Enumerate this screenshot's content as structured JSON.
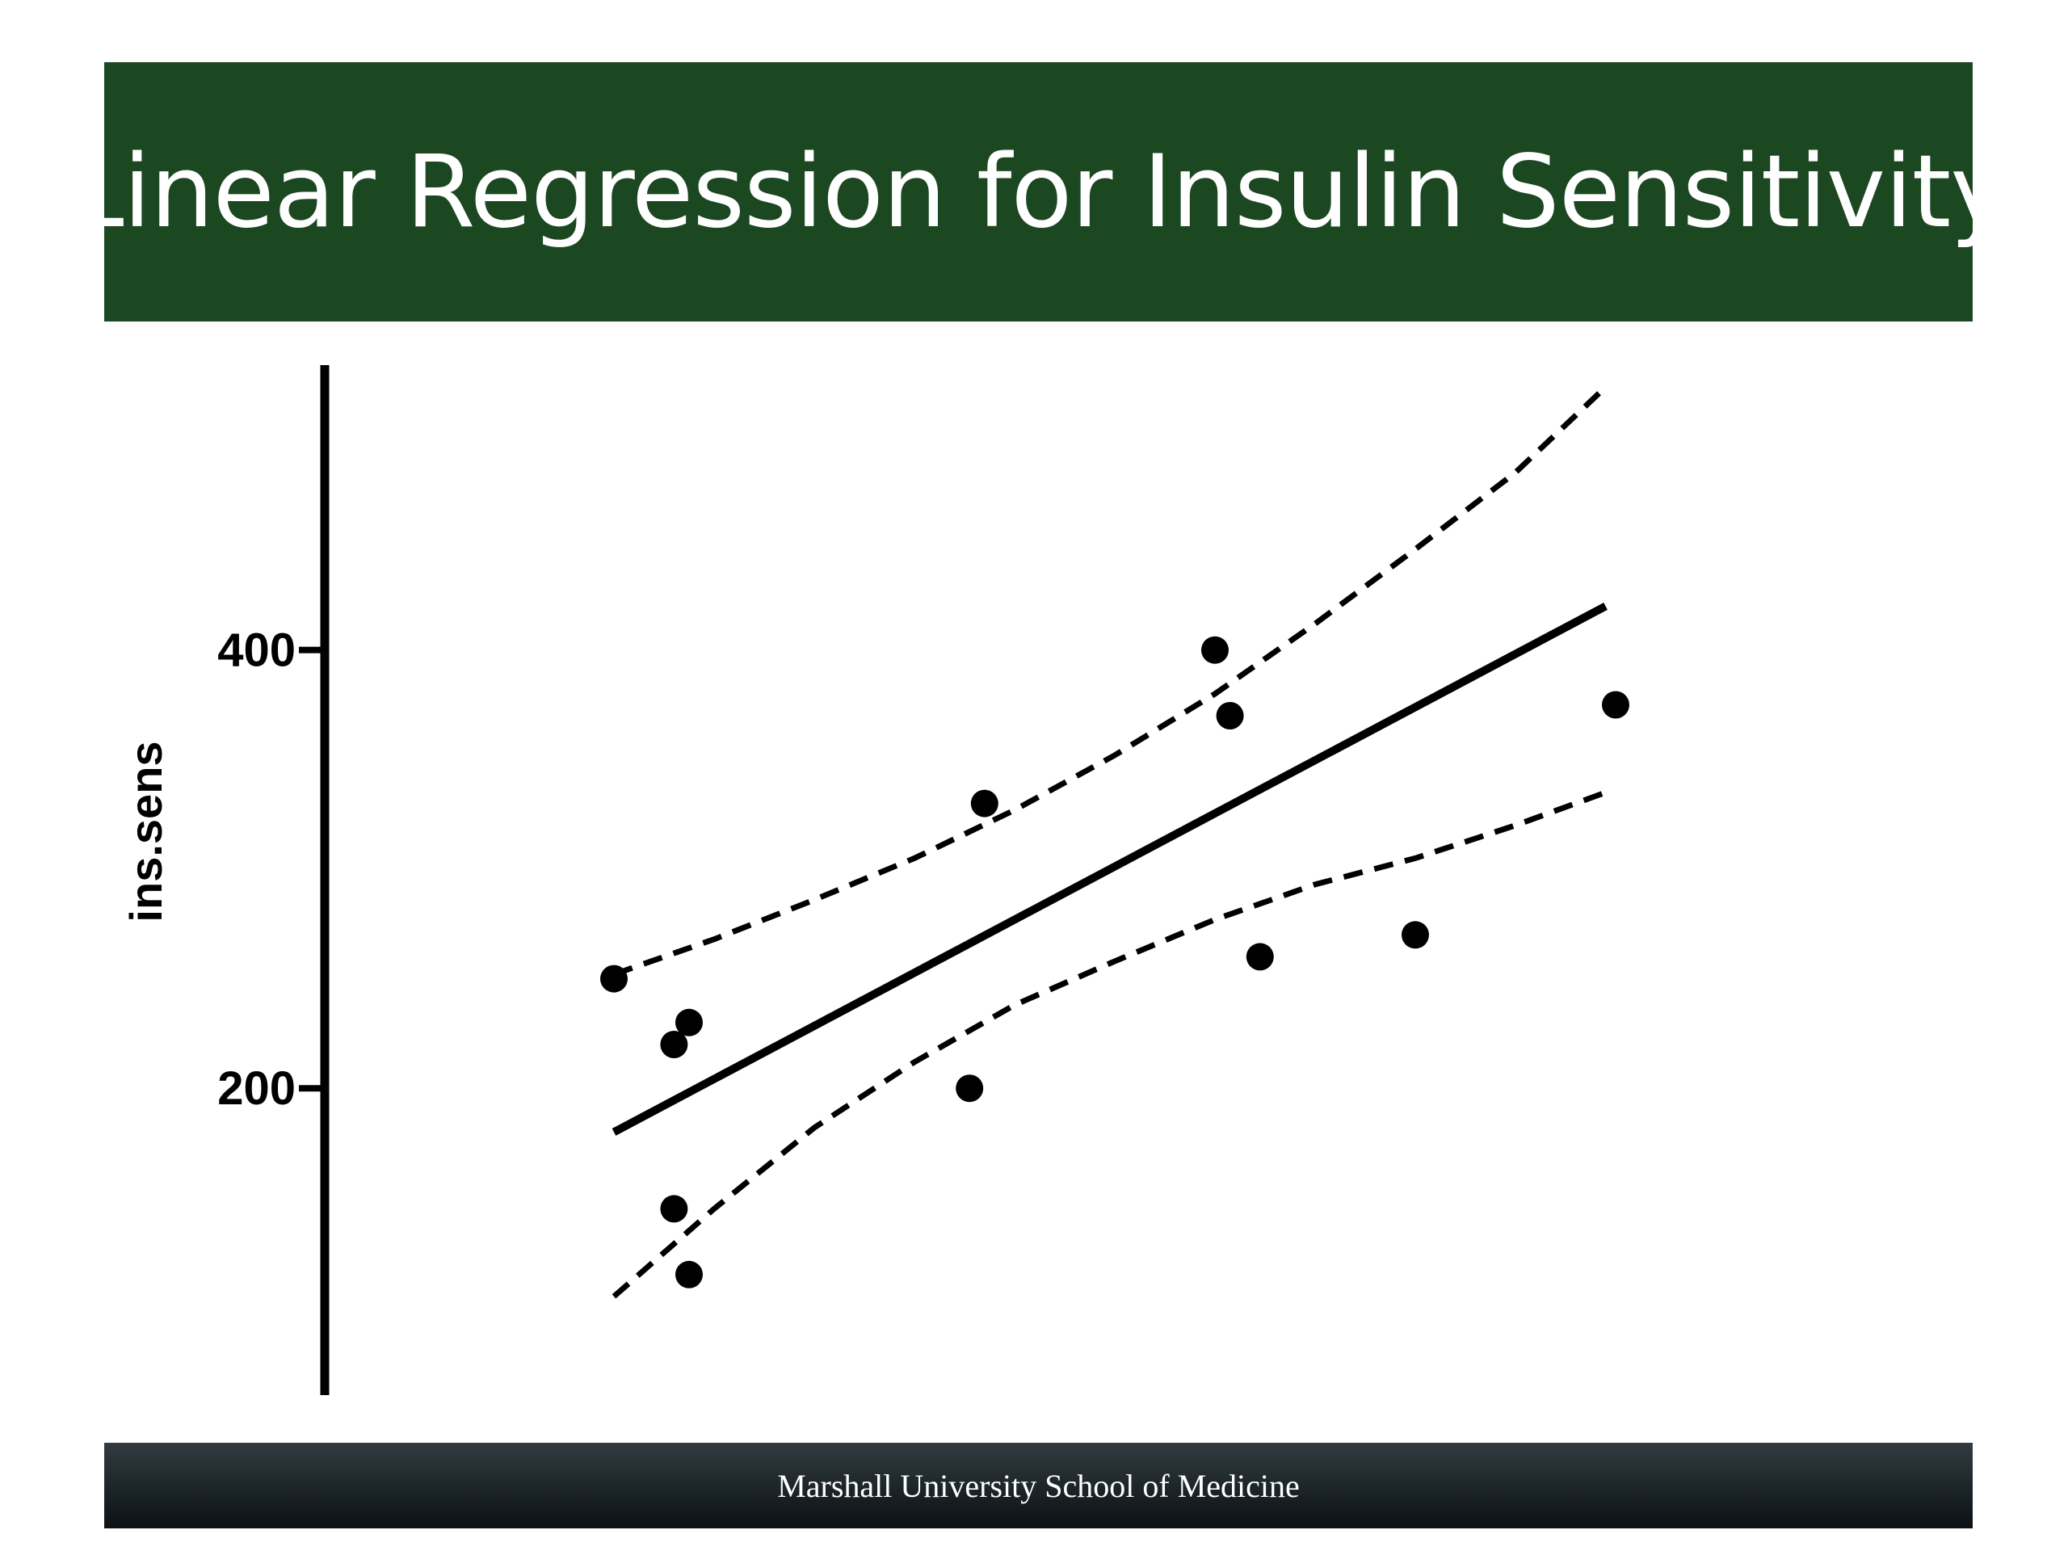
{
  "slide": {
    "title": "Linear Regression for Insulin Sensitivity",
    "footer": "Marshall University School of Medicine",
    "colors": {
      "title_bar": "#1b4721",
      "footer_bar": "#1a2226",
      "ink": "#000000"
    }
  },
  "chart_data": {
    "type": "scatter",
    "title": "",
    "ylabel": "ins.sens",
    "xlabel": "",
    "ylim": [
      60,
      530
    ],
    "yticks": [
      {
        "value": 200,
        "label": "200"
      },
      {
        "value": 400,
        "label": "400"
      }
    ],
    "x_axis_shown": false,
    "grid": false,
    "xlim": [
      0,
      100
    ],
    "series": [
      {
        "points": [
          {
            "x": 0,
            "y": 250
          },
          {
            "x": 6,
            "y": 220
          },
          {
            "x": 7.5,
            "y": 230
          },
          {
            "x": 6,
            "y": 145
          },
          {
            "x": 7.5,
            "y": 115
          },
          {
            "x": 35.5,
            "y": 200
          },
          {
            "x": 37,
            "y": 330
          },
          {
            "x": 60,
            "y": 400
          },
          {
            "x": 61.5,
            "y": 370
          },
          {
            "x": 64.5,
            "y": 260
          },
          {
            "x": 80,
            "y": 270
          },
          {
            "x": 100,
            "y": 375
          }
        ]
      }
    ],
    "regression": {
      "style": "solid",
      "x": [
        0,
        99
      ],
      "y": [
        180,
        420
      ]
    },
    "confidence_band": {
      "style": "dashed",
      "x": [
        0,
        10,
        20,
        30,
        40,
        50,
        60,
        70,
        80,
        90,
        99
      ],
      "upper": [
        252,
        268,
        286,
        305,
        327,
        352,
        380,
        412,
        446,
        481,
        520
      ],
      "lower": [
        105,
        145,
        182,
        212,
        238,
        258,
        277,
        293,
        305,
        320,
        335
      ]
    }
  }
}
